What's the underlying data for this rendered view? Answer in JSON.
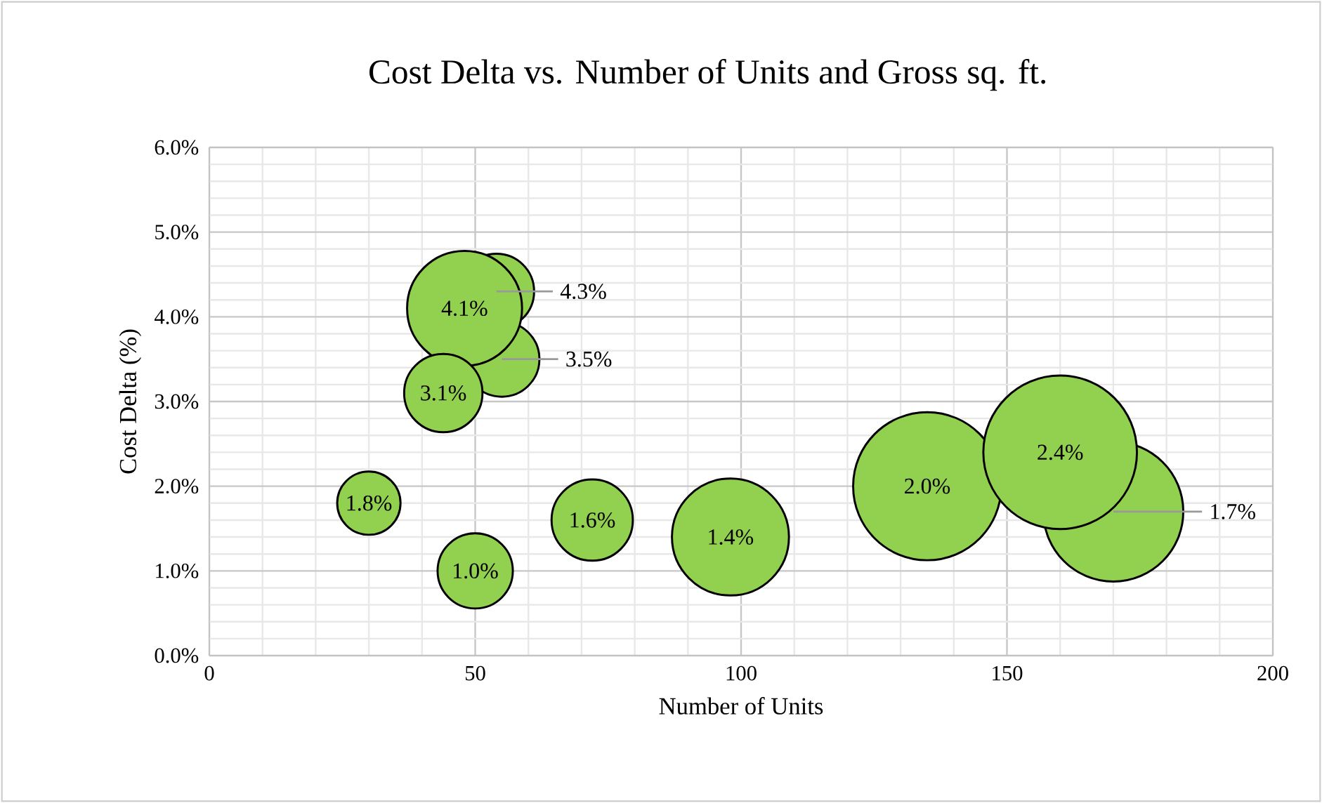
{
  "chart_data": {
    "type": "bubble",
    "title": "Cost Delta vs. Number of Units and Gross sq. ft.",
    "xlabel": "Number of Units",
    "ylabel": "Cost Delta (%)",
    "x": [
      30,
      50,
      54,
      55,
      48,
      44,
      72,
      98,
      135,
      170,
      160
    ],
    "values": [
      1.8,
      1.0,
      4.3,
      3.5,
      4.1,
      3.1,
      1.6,
      1.4,
      2.0,
      1.7,
      2.4
    ],
    "sizes": [
      0.17,
      0.24,
      0.24,
      0.24,
      0.56,
      0.26,
      0.28,
      0.58,
      0.93,
      0.83,
      1
    ],
    "value_labels": [
      "1.8%",
      "1.0%",
      "4.3%",
      "3.5%",
      "4.1%",
      "3.1%",
      "1.6%",
      "1.4%",
      "2.0%",
      "1.7%",
      "2.4%"
    ],
    "color": "#92d050",
    "xlim": [
      0,
      200
    ],
    "xticks": [
      0,
      50,
      100,
      150,
      200
    ],
    "ylim": [
      0,
      6
    ],
    "yticks": [
      {
        "value": 0,
        "label": "0.0%"
      },
      {
        "value": 1,
        "label": "1.0%"
      },
      {
        "value": 2,
        "label": "2.0%"
      },
      {
        "value": 3,
        "label": "3.0%"
      },
      {
        "value": 4,
        "label": "4.0%"
      },
      {
        "value": 5,
        "label": "5.0%"
      },
      {
        "value": 6,
        "label": "6.0%"
      }
    ],
    "grid": true
  }
}
